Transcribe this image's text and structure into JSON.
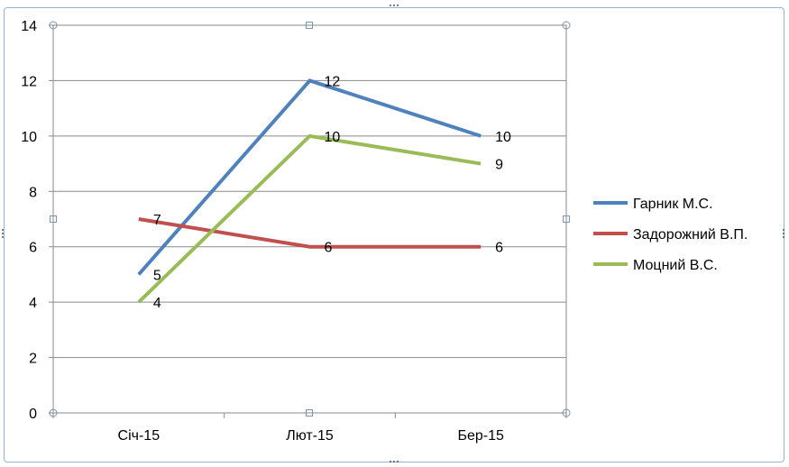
{
  "chart_data": {
    "type": "line",
    "categories": [
      "Січ-15",
      "Лют-15",
      "Бер-15"
    ],
    "series": [
      {
        "name": "Гарник М.С.",
        "color": "#4f81bd",
        "values": [
          5,
          12,
          10
        ]
      },
      {
        "name": "Задорожний В.П.",
        "color": "#c0504d",
        "values": [
          7,
          6,
          6
        ]
      },
      {
        "name": "Моцний В.С.",
        "color": "#9bbb59",
        "values": [
          4,
          10,
          9
        ]
      }
    ],
    "ylim": [
      0,
      14
    ],
    "yticks": [
      "0",
      "2",
      "4",
      "6",
      "8",
      "10",
      "12",
      "14"
    ],
    "grid": true,
    "legend_position": "right",
    "data_labels": true
  }
}
